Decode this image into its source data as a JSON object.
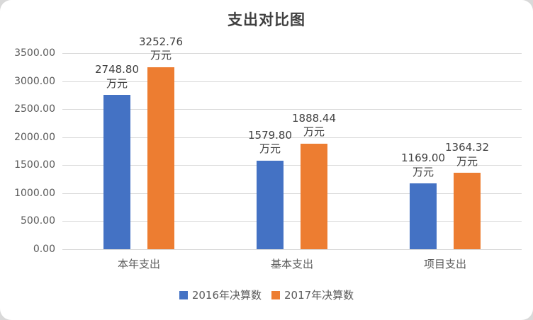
{
  "chart_data": {
    "type": "bar",
    "title": "支出对比图",
    "categories": [
      "本年支出",
      "基本支出",
      "项目支出"
    ],
    "series": [
      {
        "name": "2016年决算数",
        "color": "#4472C4",
        "values": [
          2748.8,
          1579.8,
          1169.0
        ]
      },
      {
        "name": "2017年决算数",
        "color": "#ED7D31",
        "values": [
          3252.76,
          1888.44,
          1364.32
        ]
      }
    ],
    "unit_label": "万元",
    "data_label_format": "two-line: value + unit",
    "ylim": [
      0,
      3500
    ],
    "ytick_step": 500,
    "ytick_labels": [
      "0.00",
      "500.00",
      "1000.00",
      "1500.00",
      "2000.00",
      "2500.00",
      "3000.00",
      "3500.00"
    ],
    "grid": true,
    "legend_position": "bottom",
    "colors": {
      "grid": "#d9d9d9",
      "text": "#595959",
      "label": "#404040"
    }
  }
}
